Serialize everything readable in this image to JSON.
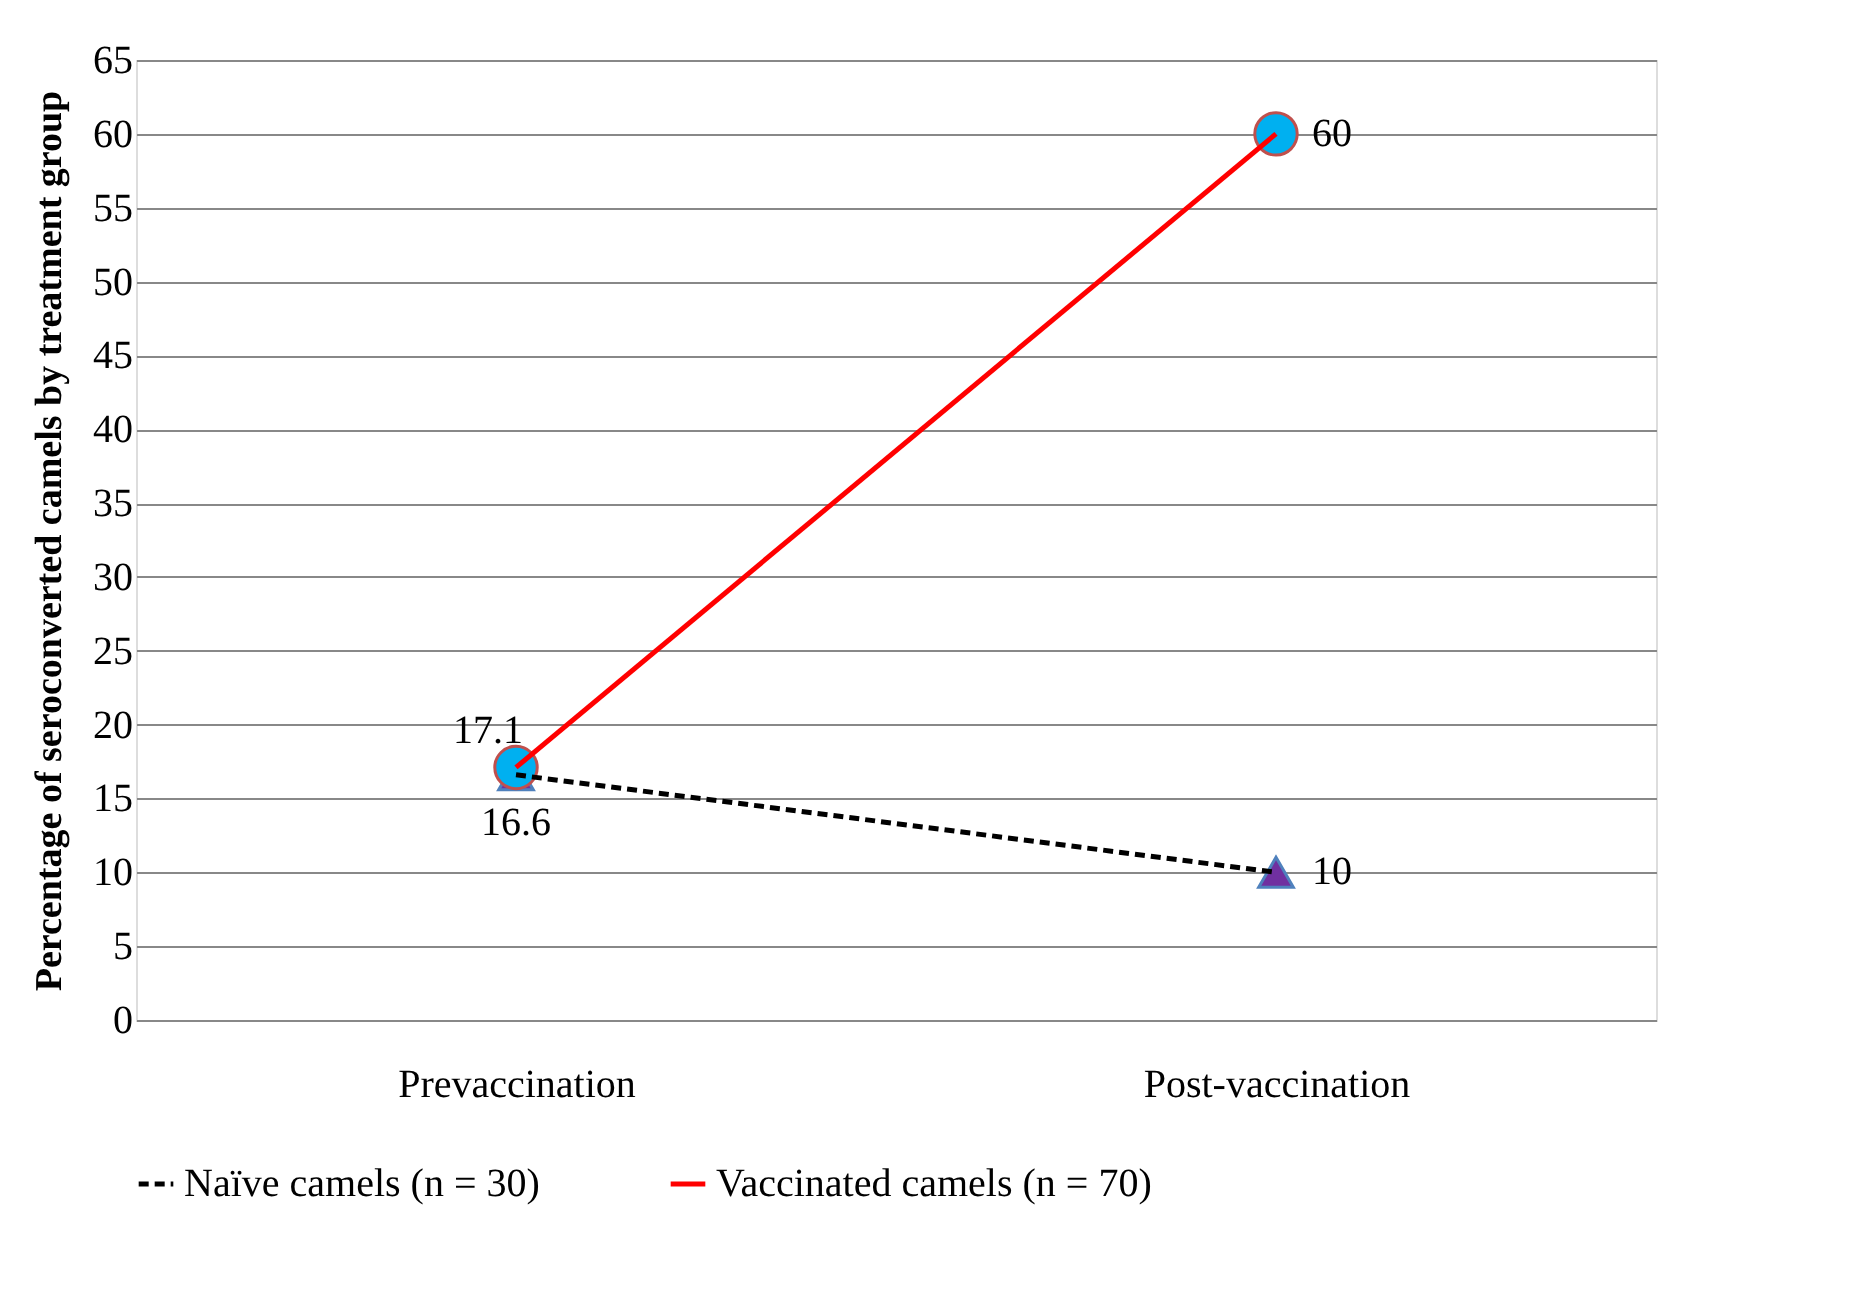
{
  "chart_data": {
    "type": "line",
    "ylabel": "Percentage of seroconverted camels by treatment group",
    "categories": [
      "Prevaccination",
      "Post-vaccination"
    ],
    "series": [
      {
        "name": "Naïve camels (n = 30)",
        "color": "#000000",
        "values": [
          16.6,
          10
        ],
        "marker": "triangle",
        "line_style": "dashed"
      },
      {
        "name": "Vaccinated camels (n = 70)",
        "color": "#ff0000",
        "values": [
          17.1,
          60
        ],
        "marker": "circle",
        "line_style": "solid"
      }
    ],
    "ylim": [
      0,
      65
    ],
    "yticks": [
      0,
      5,
      10,
      15,
      20,
      25,
      30,
      35,
      40,
      45,
      50,
      55,
      60,
      65
    ],
    "grid": "y",
    "legend": "bottom",
    "data_labels": true
  }
}
